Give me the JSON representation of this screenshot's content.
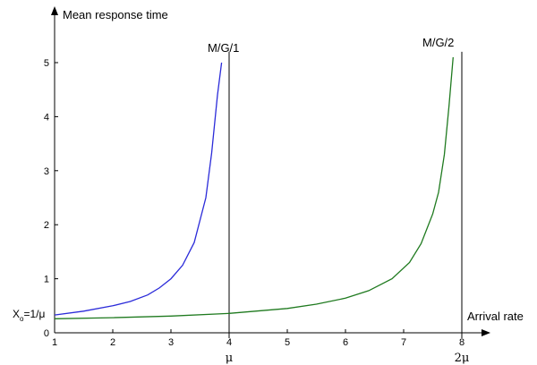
{
  "chart_data": {
    "type": "line",
    "xlabel": "Arrival rate",
    "ylabel": "Mean response time",
    "xlim": [
      1,
      8.3
    ],
    "ylim": [
      0,
      5.5
    ],
    "x_ticks": [
      1,
      2,
      3,
      4,
      5,
      6,
      7,
      8
    ],
    "y_ticks": [
      0,
      1,
      2,
      3,
      4,
      5
    ],
    "grid": false,
    "series": [
      {
        "name": "M/G/1",
        "color": "#2b2bd9",
        "x": [
          1.0,
          1.5,
          2.0,
          2.3,
          2.6,
          2.8,
          3.0,
          3.2,
          3.4,
          3.6,
          3.7,
          3.8,
          3.87
        ],
        "y": [
          0.33,
          0.4,
          0.5,
          0.58,
          0.7,
          0.83,
          1.0,
          1.25,
          1.67,
          2.5,
          3.33,
          4.4,
          5.0
        ]
      },
      {
        "name": "M/G/2",
        "color": "#1f7a1f",
        "x": [
          1.0,
          2.0,
          3.0,
          4.0,
          5.0,
          5.5,
          6.0,
          6.4,
          6.8,
          7.1,
          7.3,
          7.5,
          7.6,
          7.7,
          7.78,
          7.85
        ],
        "y": [
          0.26,
          0.28,
          0.31,
          0.36,
          0.45,
          0.53,
          0.64,
          0.78,
          1.0,
          1.3,
          1.65,
          2.2,
          2.6,
          3.3,
          4.2,
          5.1
        ]
      }
    ],
    "asymptotes": [
      {
        "x": 4,
        "label": "μ"
      },
      {
        "x": 8,
        "label": "2μ"
      }
    ],
    "annotations": {
      "m_g_1": "M/G/1",
      "m_g_2": "M/G/2",
      "xo_prefix": "X",
      "xo_sub": "o",
      "xo_suffix": "=1/μ"
    }
  }
}
